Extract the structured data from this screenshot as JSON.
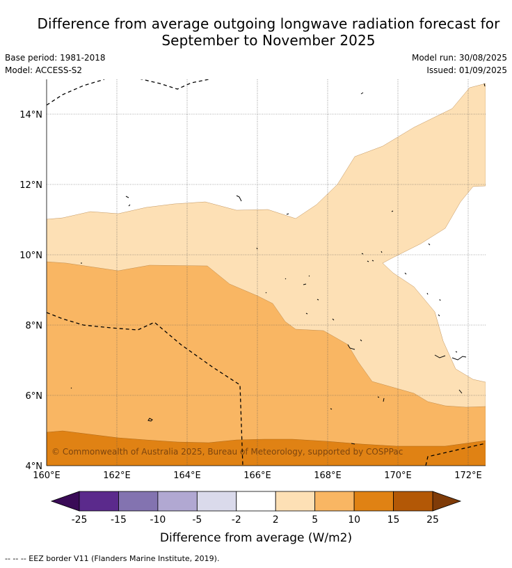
{
  "title_line1": "Difference from average outgoing longwave radiation forecast for",
  "title_line2": "September to November 2025",
  "base_period": "Base period: 1981-2018",
  "model": "Model: ACCESS-S2",
  "model_run": "Model run: 30/08/2025",
  "issued": "Issued: 01/09/2025",
  "map": {
    "lon_ticks": [
      "160°E",
      "162°E",
      "164°E",
      "166°E",
      "168°E",
      "170°E",
      "172°E"
    ],
    "lat_ticks": [
      "14°N",
      "12°N",
      "10°N",
      "8°N",
      "6°N",
      "4°N"
    ],
    "lon_range": [
      160,
      172.5
    ],
    "lat_range": [
      4,
      15.1
    ],
    "copyright": "© Commonwealth of Australia 2025, Bureau of Meteorology, supported by COSPPac"
  },
  "colorbar": {
    "title": "Difference from average (W/m2)",
    "labels": [
      "-25",
      "-15",
      "-10",
      "-5",
      "-2",
      "2",
      "5",
      "10",
      "15",
      "25"
    ],
    "colors": [
      "#5b2a8c",
      "#8373b0",
      "#b1a8d2",
      "#dadaeb",
      "#ffffff",
      "#fde0b5",
      "#f9b663",
      "#e08214",
      "#b35806"
    ],
    "low_extend_color": "#3a0b57",
    "high_extend_color": "#7f3b08"
  },
  "footnote": "--  --  -- EEZ border V11 (Flanders Marine Institute, 2019)."
}
